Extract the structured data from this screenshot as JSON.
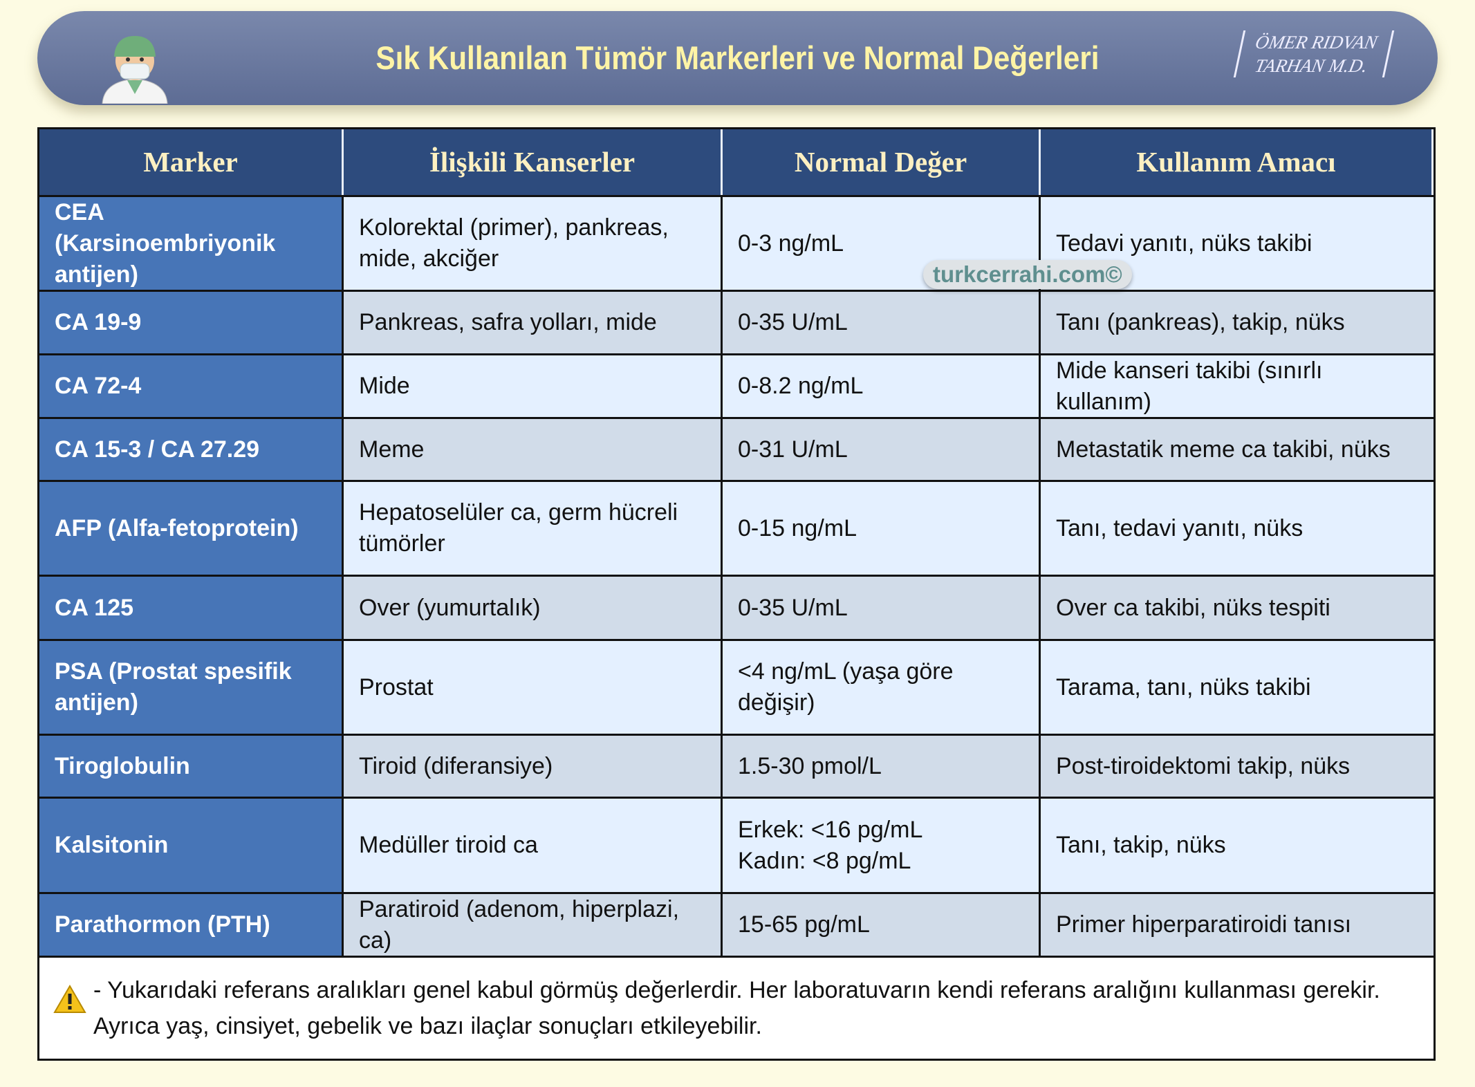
{
  "header": {
    "title": "Sık Kullanılan Tümör Markerleri ve Normal Değerleri",
    "signature": [
      "ÖMER RIDVAN",
      "TARHAN M.D."
    ]
  },
  "watermark": "turkcerrahi.com©",
  "table": {
    "columns": [
      "Marker",
      "İlişkili Kanserler",
      "Normal Değer",
      "Kullanım Amacı"
    ],
    "rows": [
      [
        "CEA (Karsinoembriyonik antijen)",
        "Kolorektal (primer), pankreas, mide, akciğer",
        "0-3 ng/mL",
        "Tedavi yanıtı, nüks takibi"
      ],
      [
        "CA 19-9",
        "Pankreas, safra yolları, mide",
        "0-35 U/mL",
        "Tanı (pankreas), takip, nüks"
      ],
      [
        "CA 72-4",
        "Mide",
        "0-8.2 ng/mL",
        "Mide kanseri takibi (sınırlı kullanım)"
      ],
      [
        "CA 15-3 / CA 27.29",
        "Meme",
        "0-31 U/mL",
        "Metastatik meme ca takibi, nüks"
      ],
      [
        "AFP (Alfa-fetoprotein)",
        "Hepatoselüler ca, germ hücreli tümörler",
        "0-15 ng/mL",
        "Tanı, tedavi yanıtı, nüks"
      ],
      [
        "CA 125",
        "Over (yumurtalık)",
        "0-35 U/mL",
        "Over ca takibi, nüks tespiti"
      ],
      [
        "PSA (Prostat spesifik antijen)",
        "Prostat",
        "<4 ng/mL (yaşa göre değişir)",
        "Tarama, tanı, nüks takibi"
      ],
      [
        "Tiroglobulin",
        "Tiroid (diferansiye)",
        "1.5-30 pmol/L",
        "Post-tiroidektomi takip, nüks"
      ],
      [
        "Kalsitonin",
        "Medüller tiroid ca",
        [
          "Erkek: <16 pg/mL",
          "Kadın: <8 pg/mL"
        ],
        "Tanı, takip, nüks"
      ],
      [
        "Parathormon (PTH)",
        "Paratiroid (adenom, hiperplazi, ca)",
        "15-65 pg/mL",
        "Primer hiperparatiroidi tanısı"
      ]
    ]
  },
  "footer": {
    "note": "- Yukarıdaki referans aralıkları genel kabul görmüş değerlerdir. Her laboratuvarın kendi referans aralığını kullanması gerekir. Ayrıca yaş, cinsiyet, gebelik ve bazı ilaçlar sonuçları etkileyebilir."
  }
}
